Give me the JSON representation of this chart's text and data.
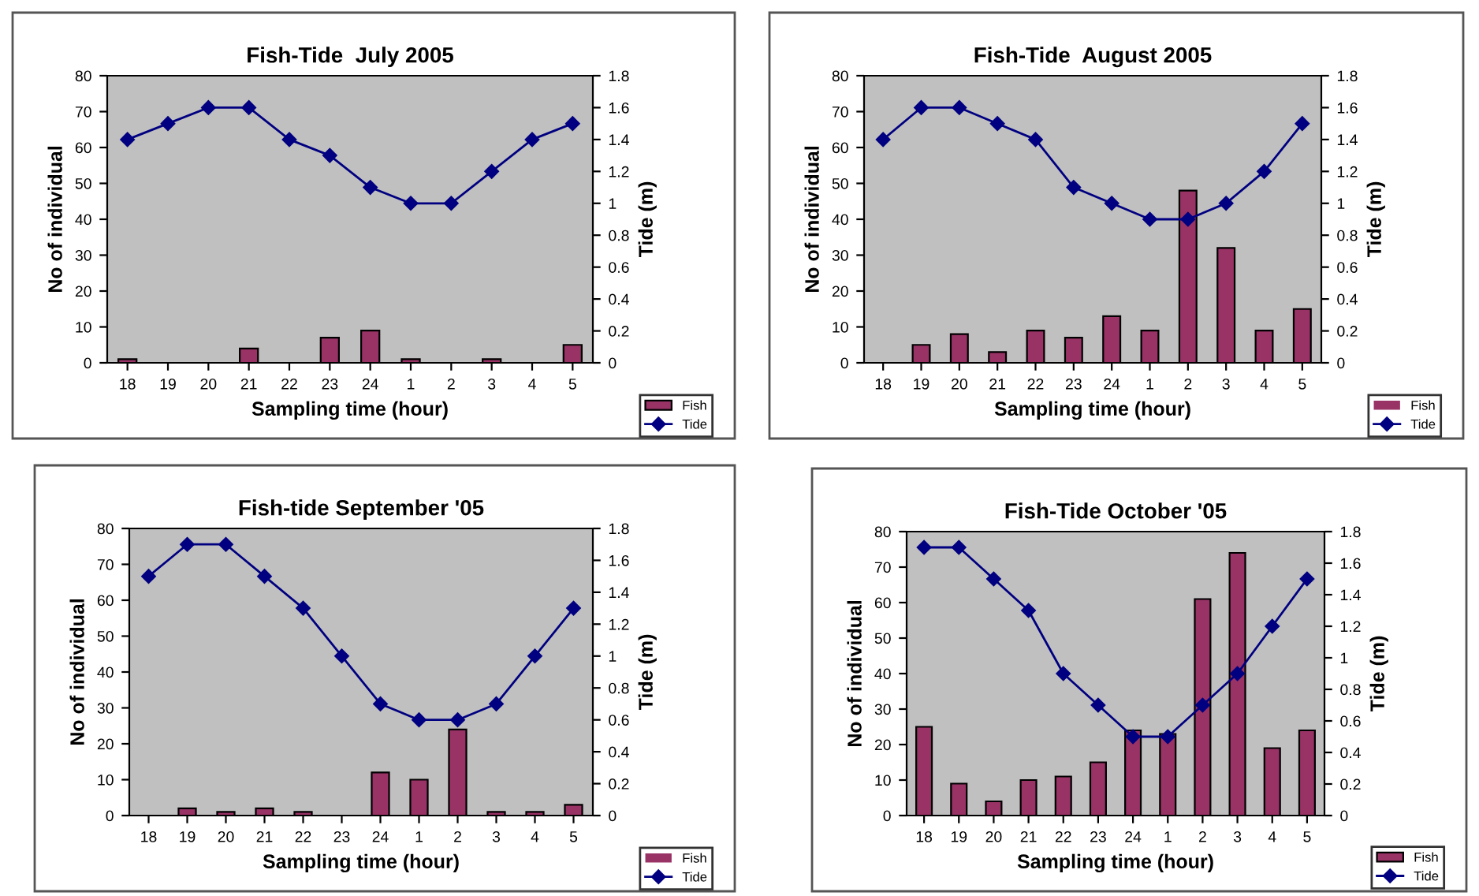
{
  "chart_data": [
    {
      "type": "bar",
      "title": "Fish-Tide  July 2005",
      "xlabel": "Sampling time (hour)",
      "ylabel": "No of individual",
      "y2label": "Tide (m)",
      "categories": [
        "18",
        "19",
        "20",
        "21",
        "22",
        "23",
        "24",
        "1",
        "2",
        "3",
        "4",
        "5"
      ],
      "series": [
        {
          "name": "Fish",
          "color": "#993366",
          "values": [
            1,
            0,
            0,
            4,
            0,
            7,
            9,
            1,
            0,
            1,
            0,
            5
          ]
        },
        {
          "name": "Tide",
          "type": "line",
          "axis": "y2",
          "color": "#000080",
          "marker": "diamond",
          "values": [
            1.4,
            1.5,
            1.6,
            1.6,
            1.4,
            1.3,
            1.1,
            1.0,
            1.0,
            1.2,
            1.4,
            1.5
          ]
        }
      ],
      "ylim": [
        0,
        80
      ],
      "yticks": [
        0,
        10,
        20,
        30,
        40,
        50,
        60,
        70,
        80
      ],
      "y2lim": [
        0,
        1.8
      ],
      "y2ticks": [
        0,
        0.2,
        0.4,
        0.6,
        0.8,
        1,
        1.2,
        1.4,
        1.6,
        1.8
      ],
      "legend": "bottom right",
      "grid": false
    },
    {
      "type": "bar",
      "title": "Fish-Tide  August 2005",
      "xlabel": "Sampling time (hour)",
      "ylabel": "No of individual",
      "y2label": "Tide (m)",
      "categories": [
        "18",
        "19",
        "20",
        "21",
        "22",
        "23",
        "24",
        "1",
        "2",
        "3",
        "4",
        "5"
      ],
      "series": [
        {
          "name": "Fish",
          "color": "#993366",
          "values": [
            0,
            5,
            8,
            3,
            9,
            7,
            13,
            9,
            48,
            32,
            9,
            15
          ]
        },
        {
          "name": "Tide",
          "type": "line",
          "axis": "y2",
          "color": "#000080",
          "marker": "diamond",
          "values": [
            1.4,
            1.6,
            1.6,
            1.5,
            1.4,
            1.1,
            1.0,
            0.9,
            0.9,
            1.0,
            1.2,
            1.5
          ]
        }
      ],
      "ylim": [
        0,
        80
      ],
      "yticks": [
        0,
        10,
        20,
        30,
        40,
        50,
        60,
        70,
        80
      ],
      "y2lim": [
        0,
        1.8
      ],
      "y2ticks": [
        0,
        0.2,
        0.4,
        0.6,
        0.8,
        1,
        1.2,
        1.4,
        1.6,
        1.8
      ],
      "legend": "bottom right",
      "grid": false
    },
    {
      "type": "bar",
      "title": "Fish-tide September '05",
      "xlabel": "Sampling time (hour)",
      "ylabel": "No of individual",
      "y2label": "Tide (m)",
      "categories": [
        "18",
        "19",
        "20",
        "21",
        "22",
        "23",
        "24",
        "1",
        "2",
        "3",
        "4",
        "5"
      ],
      "series": [
        {
          "name": "Fish",
          "color": "#993366",
          "values": [
            0,
            2,
            1,
            2,
            1,
            0,
            12,
            10,
            24,
            1,
            1,
            3
          ]
        },
        {
          "name": "Tide",
          "type": "line",
          "axis": "y2",
          "color": "#000080",
          "marker": "diamond",
          "values": [
            1.5,
            1.7,
            1.7,
            1.5,
            1.3,
            1.0,
            0.7,
            0.6,
            0.6,
            0.7,
            1.0,
            1.3
          ]
        }
      ],
      "ylim": [
        0,
        80
      ],
      "yticks": [
        0,
        10,
        20,
        30,
        40,
        50,
        60,
        70,
        80
      ],
      "y2lim": [
        0,
        1.8
      ],
      "y2ticks": [
        0,
        0.2,
        0.4,
        0.6,
        0.8,
        1,
        1.2,
        1.4,
        1.6,
        1.8
      ],
      "legend": "bottom right",
      "grid": false
    },
    {
      "type": "bar",
      "title": "Fish-Tide October '05",
      "xlabel": "Sampling time (hour)",
      "ylabel": "No of individual",
      "y2label": "Tide (m)",
      "categories": [
        "18",
        "19",
        "20",
        "21",
        "22",
        "23",
        "24",
        "1",
        "2",
        "3",
        "4",
        "5"
      ],
      "series": [
        {
          "name": "Fish",
          "color": "#993366",
          "values": [
            25,
            9,
            4,
            10,
            11,
            15,
            24,
            23,
            61,
            74,
            19,
            24
          ]
        },
        {
          "name": "Tide",
          "type": "line",
          "axis": "y2",
          "color": "#000080",
          "marker": "diamond",
          "values": [
            1.7,
            1.7,
            1.5,
            1.3,
            0.9,
            0.7,
            0.5,
            0.5,
            0.7,
            0.9,
            1.2,
            1.5
          ]
        }
      ],
      "ylim": [
        0,
        80
      ],
      "yticks": [
        0,
        10,
        20,
        30,
        40,
        50,
        60,
        70,
        80
      ],
      "y2lim": [
        0,
        1.8
      ],
      "y2ticks": [
        0,
        0.2,
        0.4,
        0.6,
        0.8,
        1,
        1.2,
        1.4,
        1.6,
        1.8
      ],
      "legend": "bottom right",
      "grid": false
    }
  ]
}
